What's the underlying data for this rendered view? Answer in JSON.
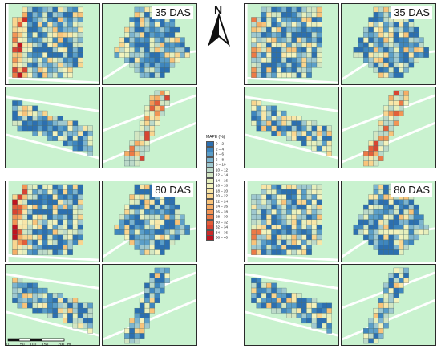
{
  "north_arrow": {
    "letter": "N"
  },
  "panels": [
    {
      "id": "top-left",
      "label": "35 DAS"
    },
    {
      "id": "top-right",
      "label": "35 DAS"
    },
    {
      "id": "bottom-left",
      "label": "80 DAS"
    },
    {
      "id": "bottom-right",
      "label": "80 DAS"
    }
  ],
  "legend": {
    "title": "MAPE (%)",
    "items": [
      {
        "label": "0 – 2",
        "color": "#2c6fb0"
      },
      {
        "label": "2 – 4",
        "color": "#3f86be"
      },
      {
        "label": "4 – 6",
        "color": "#5b9ec8"
      },
      {
        "label": "6 – 8",
        "color": "#7db4cf"
      },
      {
        "label": "8 – 10",
        "color": "#9fc8cf"
      },
      {
        "label": "10 – 12",
        "color": "#bcd9c9"
      },
      {
        "label": "12 – 14",
        "color": "#d3e6c2"
      },
      {
        "label": "14 – 16",
        "color": "#e6efbd"
      },
      {
        "label": "16 – 18",
        "color": "#f3f2bd"
      },
      {
        "label": "18 – 20",
        "color": "#f8e6a8"
      },
      {
        "label": "20 – 22",
        "color": "#f9d58f"
      },
      {
        "label": "22 – 24",
        "color": "#f8c37a"
      },
      {
        "label": "24 – 26",
        "color": "#f6ad66"
      },
      {
        "label": "26 – 28",
        "color": "#f29555"
      },
      {
        "label": "28 – 30",
        "color": "#ec7a46"
      },
      {
        "label": "30 – 32",
        "color": "#e35f3a"
      },
      {
        "label": "32 – 34",
        "color": "#d84432"
      },
      {
        "label": "34 – 36",
        "color": "#cc2b29"
      },
      {
        "label": "38 – 40",
        "color": "#bf1420"
      }
    ]
  },
  "scale_bar": {
    "ticks": [
      "0",
      "50",
      "100",
      "150",
      "200"
    ],
    "unit": "m"
  },
  "colors": {
    "background": "#c9f2cf",
    "road": "#ffffff"
  }
}
